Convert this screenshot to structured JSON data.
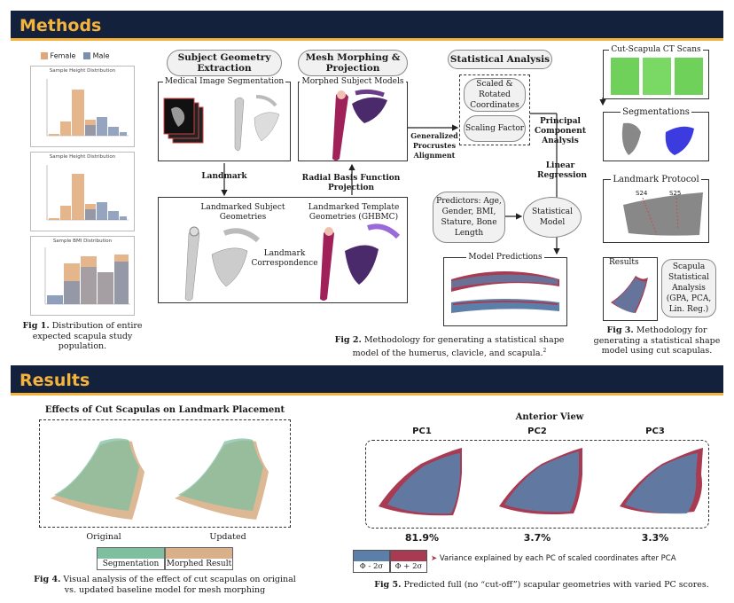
{
  "sections": {
    "methods": "Methods",
    "results": "Results"
  },
  "fig1": {
    "legend": {
      "female": "Female",
      "male": "Male"
    },
    "chart1_title": "Sample Height Distribution",
    "chart2_title": "Sample Height Distribution",
    "chart3_title": "Sample BMI Distribution",
    "caption_bold": "Fig 1.",
    "caption_rest": " Distribution of entire expected scapula study population."
  },
  "fig2": {
    "subject_geometry": "Subject Geometry Extraction",
    "mesh_morphing": "Mesh Morphing & Projection",
    "statistical_analysis": "Statistical Analysis",
    "medical_image_segmentation": "Medical Image Segmentation",
    "morphed_subject_models": "Morphed Subject Models",
    "scaled_rotated": "Scaled & Rotated Coordinates",
    "scaling_factor": "Scaling Factor",
    "gpa": "Generalized Procrustes Alignment",
    "pca": "Principal Component Analysis",
    "linear_regression": "Linear Regression",
    "landmark": "Landmark",
    "rbf": "Radial Basis Function Projection",
    "landmarked_subject": "Landmarked Subject Geometries",
    "landmarked_template": "Landmarked Template Geometries (GHBMC)",
    "landmark_correspondence": "Landmark Correspondence",
    "predictors": "Predictors: Age, Gender, BMI, Stature, Bone Length",
    "statistical_model": "Statistical Model",
    "model_predictions": "Model Predictions",
    "caption_bold": "Fig 2.",
    "caption_rest": " Methodology for generating a statistical shape model of the humerus, clavicle, and scapula.",
    "caption_sup": "2"
  },
  "fig3": {
    "ct_scans": "Cut-Scapula CT Scans",
    "segmentations": "Segmentations",
    "landmark_protocol": "Landmark Protocol",
    "s24": "S24",
    "s25": "S25",
    "results": "Results",
    "scapula_analysis": "Scapula Statistical Analysis (GPA, PCA, Lin. Reg.)",
    "caption_bold": "Fig 3.",
    "caption_rest": " Methodology for generating a statistical shape model using cut scapulas."
  },
  "fig4": {
    "title": "Effects of Cut Scapulas on Landmark Placement",
    "original": "Original",
    "updated": "Updated",
    "legend_segmentation": "Segmentation",
    "legend_morphed": "Morphed Result",
    "caption_bold": "Fig 4.",
    "caption_rest": " Visual analysis of the effect of cut scapulas on original vs. updated baseline model for mesh morphing"
  },
  "fig5": {
    "title": "Anterior View",
    "pc1": "PC1",
    "pc2": "PC2",
    "pc3": "PC3",
    "pc1_var": "81.9%",
    "pc2_var": "3.7%",
    "pc3_var": "3.3%",
    "legend_minus": "Φ - 2σ",
    "legend_plus": "Φ + 2σ",
    "variance_note": "Variance explained by each PC of scaled coordinates after PCA",
    "caption_bold": "Fig 5.",
    "caption_rest": " Predicted full (no “cut-off”) scapular geometries with varied PC scores."
  },
  "colors": {
    "banner": "#14213d",
    "accent": "#f4b43c",
    "female": "#e0a878",
    "male": "#7a8fb0",
    "segmentation": "#7fbf9f",
    "morphed": "#d9b08a",
    "minus": "#5b7fa8",
    "plus": "#a83a52"
  }
}
